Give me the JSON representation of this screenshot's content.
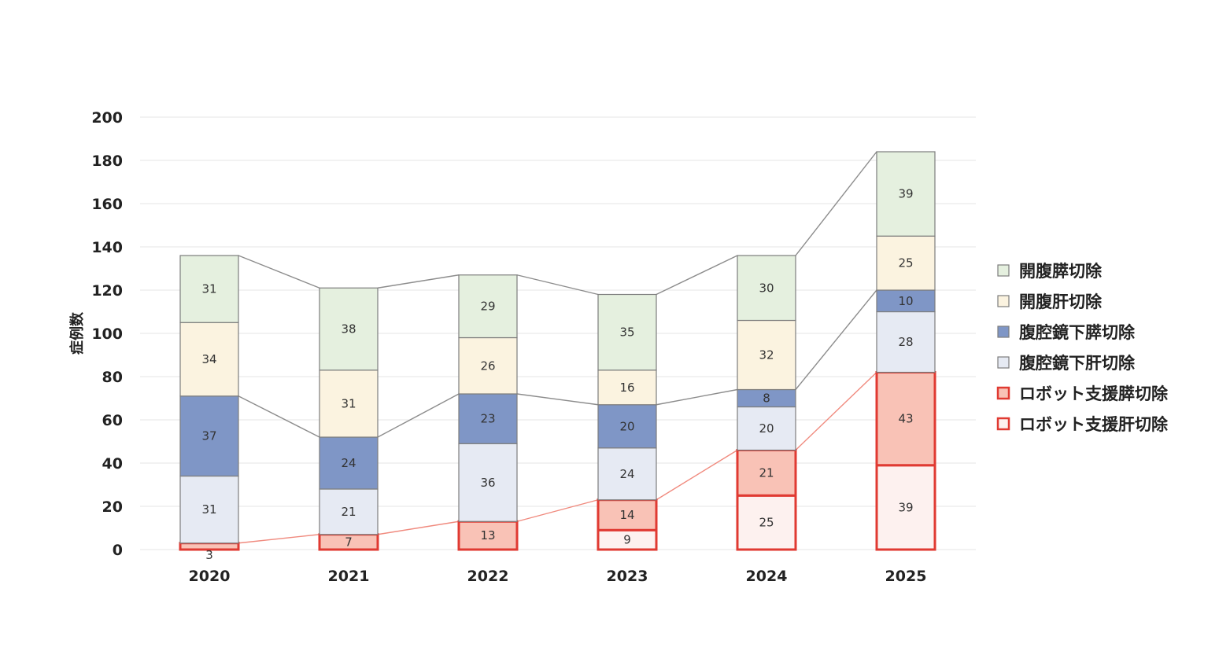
{
  "chart_data": {
    "type": "bar",
    "stacked": true,
    "ylabel": "症例数",
    "xlabel": "",
    "ylim": [
      0,
      200
    ],
    "yticks": [
      0,
      20,
      40,
      60,
      80,
      100,
      120,
      140,
      160,
      180,
      200
    ],
    "grid": true,
    "legend_position": "right",
    "categories": [
      "2020",
      "2021",
      "2022",
      "2023",
      "2024",
      "2025"
    ],
    "series": [
      {
        "name": "ロボット支援肝切除",
        "values": [
          0,
          0,
          0,
          9,
          25,
          39
        ],
        "fill": "#fdf1ef",
        "stroke": "#e03a32",
        "labels": [
          null,
          null,
          null,
          "9",
          "25",
          "39"
        ]
      },
      {
        "name": "ロボット支援膵切除",
        "values": [
          3,
          7,
          13,
          14,
          21,
          43
        ],
        "fill": "#f9c2b6",
        "stroke": "#e03a32",
        "labels": [
          "3",
          "7",
          "13",
          "14",
          "21",
          "43"
        ]
      },
      {
        "name": "腹腔鏡下肝切除",
        "values": [
          31,
          21,
          36,
          24,
          20,
          28
        ],
        "fill": "#e6eaf3",
        "stroke": "#7d7d7d",
        "labels": [
          "31",
          "21",
          "36",
          "24",
          "20",
          "28"
        ]
      },
      {
        "name": "腹腔鏡下膵切除",
        "values": [
          37,
          24,
          23,
          20,
          8,
          10
        ],
        "fill": "#7f96c6",
        "stroke": "#7d7d7d",
        "labels": [
          "37",
          "24",
          "23",
          "20",
          "8",
          "10"
        ]
      },
      {
        "name": "開腹肝切除",
        "values": [
          34,
          31,
          26,
          16,
          32,
          25
        ],
        "fill": "#fbf3e0",
        "stroke": "#7d7d7d",
        "labels": [
          "34",
          "31",
          "26",
          "16",
          "32",
          "25"
        ]
      },
      {
        "name": "開腹膵切除",
        "values": [
          31,
          38,
          29,
          35,
          30,
          39
        ],
        "fill": "#e5f0df",
        "stroke": "#7d7d7d",
        "labels": [
          "31",
          "38",
          "29",
          "35",
          "30",
          "39"
        ]
      }
    ],
    "legend_order": [
      "開腹膵切除",
      "開腹肝切除",
      "腹腔鏡下膵切除",
      "腹腔鏡下肝切除",
      "ロボット支援膵切除",
      "ロボット支援肝切除"
    ],
    "connector_colors": {
      "gray": "#8c8c8c",
      "red": "#f08a7e"
    }
  }
}
